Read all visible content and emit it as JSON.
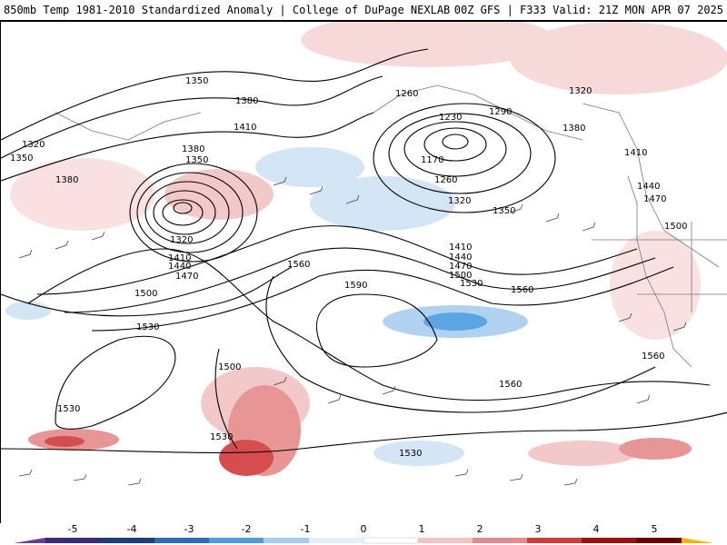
{
  "header": {
    "title": "850mb Temp 1981-2010 Standardized Anomaly | College of DuPage NEXLAB",
    "run_info": "00Z GFS | F333 Valid: 21Z MON APR 07 2025"
  },
  "map": {
    "contour_labels": [
      "1350",
      "1380",
      "1410",
      "1320",
      "1350",
      "1380",
      "1380",
      "1350",
      "1320",
      "1410",
      "1440",
      "1470",
      "1500",
      "1530",
      "1260",
      "1230",
      "1290",
      "1320",
      "1380",
      "1410",
      "1440",
      "1470",
      "1500",
      "1170",
      "1260",
      "1320",
      "1350",
      "1410",
      "1440",
      "1470",
      "1500",
      "1530",
      "1560",
      "1590",
      "1560",
      "1560",
      "1500",
      "1530",
      "1530",
      "1530",
      "1560"
    ]
  },
  "colorbar": {
    "ticks": [
      "-5",
      "-4",
      "-3",
      "-2",
      "-1",
      "0",
      "1",
      "2",
      "3",
      "4",
      "5"
    ],
    "colors": [
      "#6a3d9a",
      "#1f3d7a",
      "#2e6db4",
      "#4c9be0",
      "#a9cdef",
      "#ffffff",
      "#f2c3c3",
      "#e58a8a",
      "#d13b3b",
      "#9c1010",
      "#f4b400"
    ]
  }
}
